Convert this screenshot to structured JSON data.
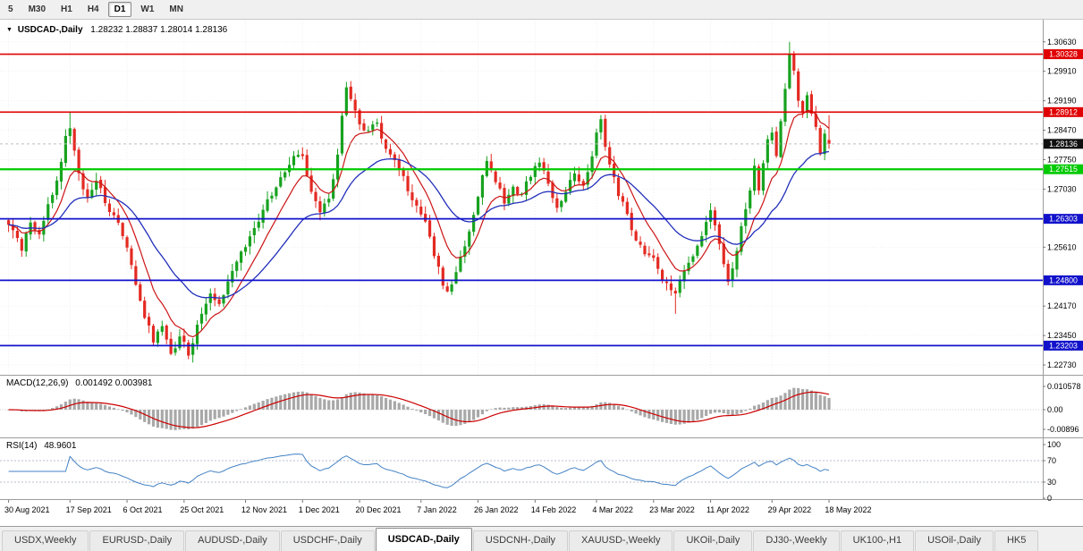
{
  "toolbar": {
    "timeframes": [
      {
        "label": "5",
        "active": false
      },
      {
        "label": "M30",
        "active": false
      },
      {
        "label": "H1",
        "active": false
      },
      {
        "label": "H4",
        "active": false
      },
      {
        "label": "D1",
        "active": true
      },
      {
        "label": "W1",
        "active": false
      },
      {
        "label": "MN",
        "active": false
      }
    ]
  },
  "chart_header": {
    "dropdown_icon": "▼",
    "symbol": "USDCAD-,Daily",
    "ohlc": "1.28232 1.28837 1.28014 1.28136"
  },
  "chart_data": {
    "type": "candlestick",
    "symbol": "USDCAD-,Daily",
    "timeframe": "D1",
    "n_bars": 188,
    "ylim": [
      1.2249,
      1.3115
    ],
    "current_candle": {
      "open": 1.28232,
      "high": 1.28837,
      "low": 1.28014,
      "close": 1.28136
    },
    "close_waypoints": [
      [
        0,
        1.2615
      ],
      [
        2,
        1.258
      ],
      [
        3,
        1.2555
      ],
      [
        5,
        1.262
      ],
      [
        7,
        1.2595
      ],
      [
        9,
        1.2665
      ],
      [
        11,
        1.272
      ],
      [
        13,
        1.283
      ],
      [
        14,
        1.285
      ],
      [
        16,
        1.274
      ],
      [
        18,
        1.268
      ],
      [
        20,
        1.2725
      ],
      [
        22,
        1.267
      ],
      [
        24,
        1.264
      ],
      [
        26,
        1.259
      ],
      [
        28,
        1.252
      ],
      [
        30,
        1.243
      ],
      [
        31,
        1.239
      ],
      [
        33,
        1.233
      ],
      [
        35,
        1.2365
      ],
      [
        37,
        1.23
      ],
      [
        39,
        1.2345
      ],
      [
        41,
        1.2295
      ],
      [
        42,
        1.233
      ],
      [
        44,
        1.2395
      ],
      [
        46,
        1.2445
      ],
      [
        48,
        1.242
      ],
      [
        50,
        1.2475
      ],
      [
        52,
        1.2525
      ],
      [
        54,
        1.2565
      ],
      [
        56,
        1.2605
      ],
      [
        58,
        1.265
      ],
      [
        60,
        1.269
      ],
      [
        62,
        1.273
      ],
      [
        64,
        1.276
      ],
      [
        66,
        1.279
      ],
      [
        67,
        1.278
      ],
      [
        69,
        1.27
      ],
      [
        71,
        1.265
      ],
      [
        73,
        1.268
      ],
      [
        75,
        1.279
      ],
      [
        76,
        1.288
      ],
      [
        77,
        1.295
      ],
      [
        78,
        1.292
      ],
      [
        80,
        1.286
      ],
      [
        82,
        1.285
      ],
      [
        84,
        1.2865
      ],
      [
        85,
        1.2825
      ],
      [
        87,
        1.279
      ],
      [
        89,
        1.275
      ],
      [
        91,
        1.27
      ],
      [
        93,
        1.2665
      ],
      [
        95,
        1.262
      ],
      [
        97,
        1.254
      ],
      [
        99,
        1.247
      ],
      [
        100,
        1.2455
      ],
      [
        102,
        1.25
      ],
      [
        104,
        1.2565
      ],
      [
        106,
        1.264
      ],
      [
        108,
        1.274
      ],
      [
        109,
        1.2775
      ],
      [
        111,
        1.272
      ],
      [
        113,
        1.267
      ],
      [
        115,
        1.271
      ],
      [
        117,
        1.269
      ],
      [
        119,
        1.2735
      ],
      [
        121,
        1.277
      ],
      [
        123,
        1.2715
      ],
      [
        125,
        1.2655
      ],
      [
        127,
        1.27
      ],
      [
        129,
        1.2745
      ],
      [
        131,
        1.271
      ],
      [
        133,
        1.278
      ],
      [
        134,
        1.284
      ],
      [
        135,
        1.287
      ],
      [
        137,
        1.276
      ],
      [
        139,
        1.269
      ],
      [
        141,
        1.264
      ],
      [
        143,
        1.258
      ],
      [
        145,
        1.2545
      ],
      [
        147,
        1.2535
      ],
      [
        149,
        1.248
      ],
      [
        151,
        1.2455
      ],
      [
        152,
        1.2445
      ],
      [
        154,
        1.25
      ],
      [
        156,
        1.2535
      ],
      [
        158,
        1.259
      ],
      [
        160,
        1.265
      ],
      [
        162,
        1.2565
      ],
      [
        164,
        1.2475
      ],
      [
        166,
        1.2555
      ],
      [
        168,
        1.265
      ],
      [
        170,
        1.276
      ],
      [
        171,
        1.27
      ],
      [
        172,
        1.277
      ],
      [
        173,
        1.2825
      ],
      [
        174,
        1.284
      ],
      [
        175,
        1.278
      ],
      [
        176,
        1.287
      ],
      [
        177,
        1.295
      ],
      [
        178,
        1.303
      ],
      [
        179,
        1.2995
      ],
      [
        180,
        1.292
      ],
      [
        181,
        1.289
      ],
      [
        182,
        1.2935
      ],
      [
        183,
        1.289
      ],
      [
        184,
        1.2855
      ],
      [
        185,
        1.279
      ],
      [
        186,
        1.284
      ],
      [
        187,
        1.28136
      ]
    ],
    "wick_overrides": {
      "14": {
        "high": 1.289
      },
      "41": {
        "low": 1.2287
      },
      "77": {
        "high": 1.2965
      },
      "152": {
        "low": 1.2398
      },
      "178": {
        "high": 1.3063
      }
    },
    "x_labels": [
      {
        "text": "30 Aug 2021",
        "bar": 0
      },
      {
        "text": "17 Sep 2021",
        "bar": 14
      },
      {
        "text": "6 Oct 2021",
        "bar": 27
      },
      {
        "text": "25 Oct 2021",
        "bar": 40
      },
      {
        "text": "12 Nov 2021",
        "bar": 54
      },
      {
        "text": "1 Dec 2021",
        "bar": 67
      },
      {
        "text": "20 Dec 2021",
        "bar": 80
      },
      {
        "text": "7 Jan 2022",
        "bar": 94
      },
      {
        "text": "26 Jan 2022",
        "bar": 107
      },
      {
        "text": "14 Feb 2022",
        "bar": 120
      },
      {
        "text": "4 Mar 2022",
        "bar": 134
      },
      {
        "text": "23 Mar 2022",
        "bar": 147
      },
      {
        "text": "11 Apr 2022",
        "bar": 160
      },
      {
        "text": "29 Apr 2022",
        "bar": 174
      },
      {
        "text": "18 May 2022",
        "bar": 187
      }
    ],
    "price_ticks": [
      "1.30630",
      "1.29910",
      "1.29190",
      "1.28470",
      "1.27750",
      "1.27030",
      "1.25610",
      "1.24170",
      "1.23450",
      "1.22730"
    ],
    "horizontal_levels": [
      {
        "price": 1.30328,
        "label": "1.30328",
        "color": "#e00000",
        "width": 1.6,
        "kind": "resistance"
      },
      {
        "price": 1.28912,
        "label": "1.28912",
        "color": "#e00000",
        "width": 1.6,
        "kind": "resistance"
      },
      {
        "price": 1.27515,
        "label": "1.27515",
        "color": "#00ca00",
        "width": 2.2,
        "kind": "support"
      },
      {
        "price": 1.26303,
        "label": "1.26303",
        "color": "#1111cc",
        "width": 1.8,
        "kind": "support"
      },
      {
        "price": 1.248,
        "label": "1.24800",
        "color": "#1111cc",
        "width": 1.8,
        "kind": "support"
      },
      {
        "price": 1.23203,
        "label": "1.23203",
        "color": "#1111cc",
        "width": 1.8,
        "kind": "support"
      }
    ],
    "current_price_badge": {
      "label": "1.28136",
      "color": "#101010"
    },
    "moving_averages": [
      {
        "color": "#cc1414",
        "period": 9,
        "type": "ema"
      },
      {
        "color": "#2330bb",
        "period": 26,
        "type": "ema"
      }
    ],
    "indicators": [
      {
        "name": "MACD",
        "label": "MACD(12,26,9)",
        "values": "0.001492 0.003981",
        "ticks": [
          {
            "v": 0.010578,
            "label": "0.010578"
          },
          {
            "v": 0,
            "label": "0.00"
          },
          {
            "v": -0.00896,
            "label": "-0.00896"
          }
        ]
      },
      {
        "name": "RSI",
        "label": "RSI(14)",
        "values": "48.9601",
        "ticks": [
          {
            "v": 100,
            "label": "100"
          },
          {
            "v": 70,
            "label": "70"
          },
          {
            "v": 30,
            "label": "30"
          },
          {
            "v": 0,
            "label": "0"
          }
        ],
        "levels": [
          70,
          30
        ]
      }
    ],
    "style": {
      "up_color": "#17a21f",
      "down_color": "#e32a22",
      "macd_hist_color": "#a8a8a8",
      "macd_signal_color": "#cc0000",
      "rsi_color": "#4382c4",
      "grid_color": "#f0f0f0",
      "frame_color": "#9c9c9c"
    }
  },
  "tabs": {
    "items": [
      {
        "label": "USDX,Weekly",
        "active": false
      },
      {
        "label": "EURUSD-,Daily",
        "active": false
      },
      {
        "label": "AUDUSD-,Daily",
        "active": false
      },
      {
        "label": "USDCHF-,Daily",
        "active": false
      },
      {
        "label": "USDCAD-,Daily",
        "active": true
      },
      {
        "label": "USDCNH-,Daily",
        "active": false
      },
      {
        "label": "XAUUSD-,Weekly",
        "active": false
      },
      {
        "label": "UKOil-,Daily",
        "active": false
      },
      {
        "label": "DJ30-,Weekly",
        "active": false
      },
      {
        "label": "UK100-,H1",
        "active": false
      },
      {
        "label": "USOil-,Daily",
        "active": false
      },
      {
        "label": "HK5",
        "active": false
      }
    ]
  }
}
